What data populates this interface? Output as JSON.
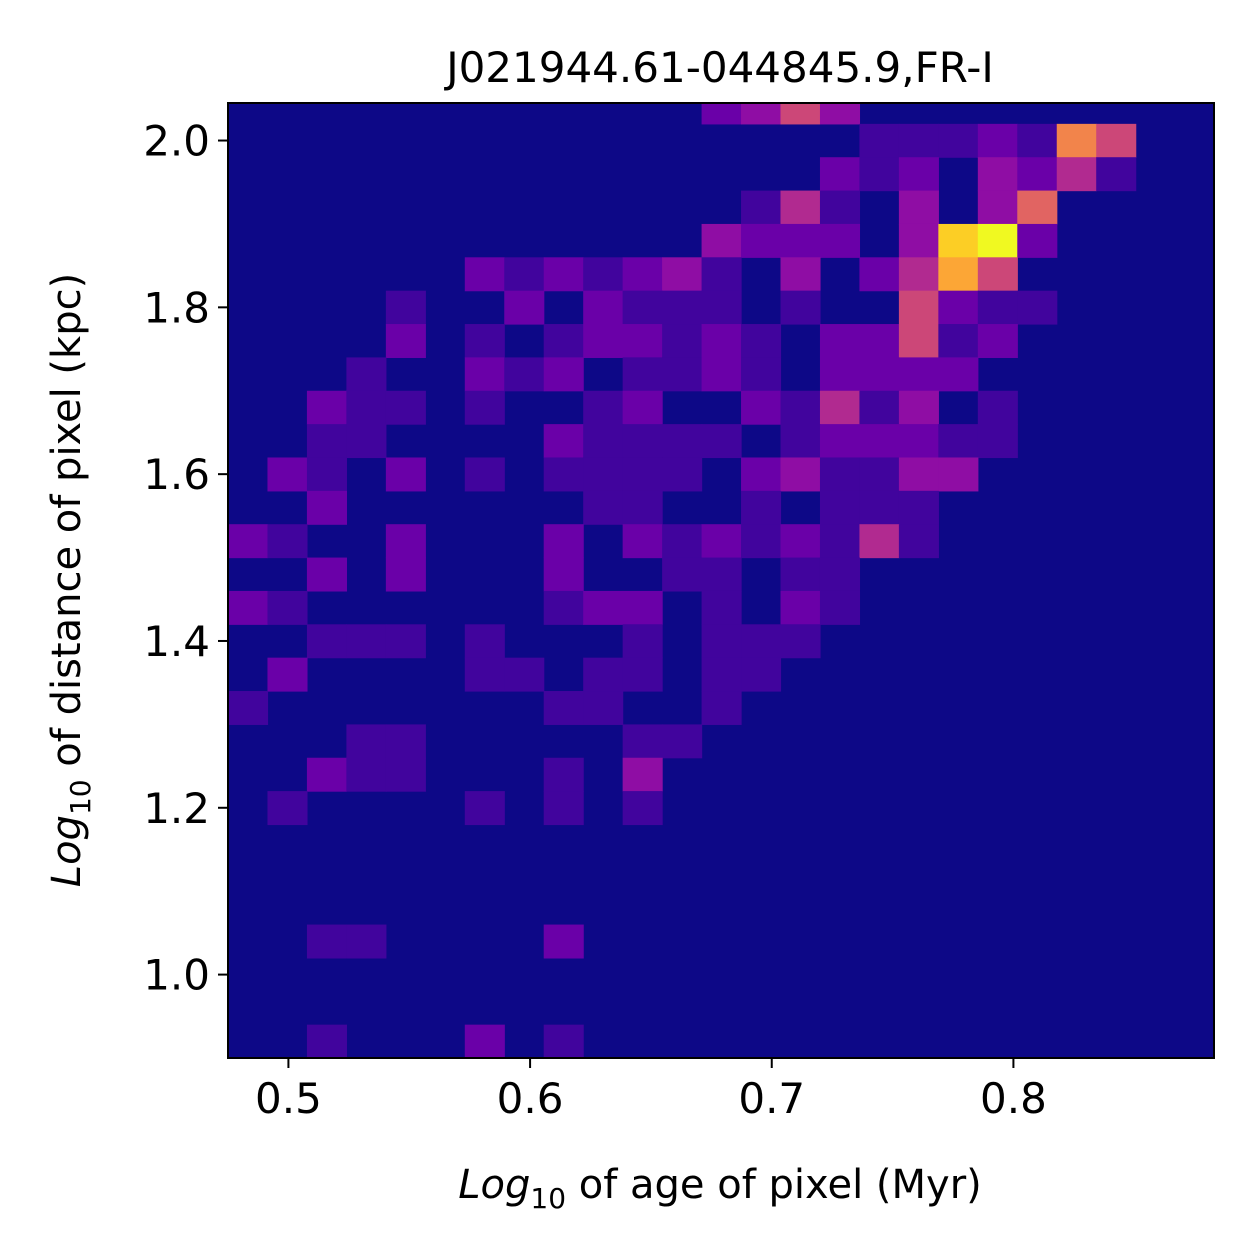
{
  "chart_data": {
    "type": "heatmap",
    "title": "J021944.61-044845.9,FR-I",
    "xlabel": {
      "italic": "Log",
      "sub": "10",
      "rest": " of age of pixel (Myr)"
    },
    "ylabel": {
      "italic": "Log",
      "sub": "10",
      "rest": " of distance of pixel (kpc)"
    },
    "xlim": [
      0.475,
      0.883
    ],
    "ylim": [
      0.9,
      2.045
    ],
    "xticks": [
      {
        "value": 0.5,
        "label": "0.5"
      },
      {
        "value": 0.6,
        "label": "0.6"
      },
      {
        "value": 0.7,
        "label": "0.7"
      },
      {
        "value": 0.8,
        "label": "0.8"
      }
    ],
    "yticks": [
      {
        "value": 1.0,
        "label": "1.0"
      },
      {
        "value": 1.2,
        "label": "1.2"
      },
      {
        "value": 1.4,
        "label": "1.4"
      },
      {
        "value": 1.6,
        "label": "1.6"
      },
      {
        "value": 1.8,
        "label": "1.8"
      },
      {
        "value": 2.0,
        "label": "2.0"
      }
    ],
    "colormap": "plasma",
    "background_color": "#0d0887",
    "vmax": 10,
    "bins": {
      "x_start": 0.475,
      "x_width": 0.01633,
      "y_start": 0.9,
      "y_width": 0.04,
      "nx": 25,
      "ny": 29
    },
    "cells": [
      [
        12,
        28,
        2
      ],
      [
        13,
        28,
        3
      ],
      [
        14,
        28,
        5
      ],
      [
        15,
        28,
        3
      ],
      [
        16,
        27,
        1
      ],
      [
        17,
        27,
        1
      ],
      [
        18,
        27,
        1
      ],
      [
        19,
        27,
        2
      ],
      [
        20,
        27,
        1
      ],
      [
        21,
        27,
        7
      ],
      [
        22,
        27,
        5
      ],
      [
        15,
        26,
        2
      ],
      [
        16,
        26,
        1
      ],
      [
        17,
        26,
        2
      ],
      [
        19,
        26,
        3
      ],
      [
        20,
        26,
        2
      ],
      [
        21,
        26,
        4
      ],
      [
        22,
        26,
        1
      ],
      [
        13,
        25,
        1
      ],
      [
        14,
        25,
        4
      ],
      [
        15,
        25,
        1
      ],
      [
        17,
        25,
        3
      ],
      [
        19,
        25,
        3
      ],
      [
        20,
        25,
        6
      ],
      [
        12,
        24,
        3
      ],
      [
        13,
        24,
        2
      ],
      [
        14,
        24,
        2
      ],
      [
        15,
        24,
        2
      ],
      [
        17,
        24,
        3
      ],
      [
        18,
        24,
        9
      ],
      [
        19,
        24,
        10
      ],
      [
        20,
        24,
        2
      ],
      [
        6,
        23,
        2
      ],
      [
        7,
        23,
        1
      ],
      [
        8,
        23,
        2
      ],
      [
        9,
        23,
        1
      ],
      [
        10,
        23,
        2
      ],
      [
        11,
        23,
        3
      ],
      [
        12,
        23,
        1
      ],
      [
        14,
        23,
        3
      ],
      [
        16,
        23,
        2
      ],
      [
        17,
        23,
        4
      ],
      [
        18,
        23,
        8
      ],
      [
        19,
        23,
        5
      ],
      [
        4,
        22,
        1
      ],
      [
        7,
        22,
        2
      ],
      [
        9,
        22,
        2
      ],
      [
        10,
        22,
        1
      ],
      [
        11,
        22,
        1
      ],
      [
        12,
        22,
        1
      ],
      [
        14,
        22,
        1
      ],
      [
        17,
        22,
        5
      ],
      [
        18,
        22,
        2
      ],
      [
        19,
        22,
        1
      ],
      [
        20,
        22,
        1
      ],
      [
        4,
        21,
        2
      ],
      [
        6,
        21,
        1
      ],
      [
        8,
        21,
        1
      ],
      [
        9,
        21,
        2
      ],
      [
        10,
        21,
        2
      ],
      [
        11,
        21,
        1
      ],
      [
        12,
        21,
        2
      ],
      [
        13,
        21,
        1
      ],
      [
        15,
        21,
        2
      ],
      [
        16,
        21,
        2
      ],
      [
        17,
        21,
        5
      ],
      [
        18,
        21,
        1
      ],
      [
        19,
        21,
        2
      ],
      [
        3,
        20,
        1
      ],
      [
        6,
        20,
        2
      ],
      [
        7,
        20,
        1
      ],
      [
        8,
        20,
        2
      ],
      [
        10,
        20,
        1
      ],
      [
        11,
        20,
        1
      ],
      [
        12,
        20,
        2
      ],
      [
        13,
        20,
        1
      ],
      [
        15,
        20,
        2
      ],
      [
        16,
        20,
        2
      ],
      [
        17,
        20,
        2
      ],
      [
        18,
        20,
        2
      ],
      [
        2,
        19,
        2
      ],
      [
        3,
        19,
        1
      ],
      [
        4,
        19,
        1
      ],
      [
        6,
        19,
        1
      ],
      [
        9,
        19,
        1
      ],
      [
        10,
        19,
        2
      ],
      [
        13,
        19,
        2
      ],
      [
        14,
        19,
        1
      ],
      [
        15,
        19,
        4
      ],
      [
        16,
        19,
        1
      ],
      [
        17,
        19,
        3
      ],
      [
        19,
        19,
        1
      ],
      [
        2,
        18,
        1
      ],
      [
        3,
        18,
        1
      ],
      [
        8,
        18,
        2
      ],
      [
        9,
        18,
        1
      ],
      [
        10,
        18,
        1
      ],
      [
        11,
        18,
        1
      ],
      [
        12,
        18,
        1
      ],
      [
        14,
        18,
        1
      ],
      [
        15,
        18,
        2
      ],
      [
        16,
        18,
        2
      ],
      [
        17,
        18,
        2
      ],
      [
        18,
        18,
        1
      ],
      [
        19,
        18,
        1
      ],
      [
        1,
        17,
        2
      ],
      [
        2,
        17,
        1
      ],
      [
        4,
        17,
        2
      ],
      [
        6,
        17,
        1
      ],
      [
        8,
        17,
        1
      ],
      [
        9,
        17,
        1
      ],
      [
        10,
        17,
        1
      ],
      [
        11,
        17,
        1
      ],
      [
        13,
        17,
        2
      ],
      [
        14,
        17,
        3
      ],
      [
        15,
        17,
        1
      ],
      [
        16,
        17,
        1
      ],
      [
        17,
        17,
        3
      ],
      [
        18,
        17,
        3
      ],
      [
        2,
        16,
        2
      ],
      [
        9,
        16,
        1
      ],
      [
        10,
        16,
        1
      ],
      [
        13,
        16,
        1
      ],
      [
        15,
        16,
        1
      ],
      [
        16,
        16,
        1
      ],
      [
        17,
        16,
        1
      ],
      [
        0,
        15,
        2
      ],
      [
        1,
        15,
        1
      ],
      [
        4,
        15,
        2
      ],
      [
        8,
        15,
        2
      ],
      [
        10,
        15,
        2
      ],
      [
        11,
        15,
        1
      ],
      [
        12,
        15,
        2
      ],
      [
        13,
        15,
        1
      ],
      [
        14,
        15,
        2
      ],
      [
        15,
        15,
        1
      ],
      [
        16,
        15,
        4
      ],
      [
        17,
        15,
        1
      ],
      [
        2,
        14,
        2
      ],
      [
        4,
        14,
        2
      ],
      [
        8,
        14,
        2
      ],
      [
        11,
        14,
        1
      ],
      [
        12,
        14,
        1
      ],
      [
        14,
        14,
        1
      ],
      [
        15,
        14,
        1
      ],
      [
        0,
        13,
        2
      ],
      [
        1,
        13,
        1
      ],
      [
        8,
        13,
        1
      ],
      [
        9,
        13,
        2
      ],
      [
        10,
        13,
        2
      ],
      [
        12,
        13,
        1
      ],
      [
        14,
        13,
        2
      ],
      [
        15,
        13,
        1
      ],
      [
        2,
        12,
        1
      ],
      [
        3,
        12,
        1
      ],
      [
        4,
        12,
        1
      ],
      [
        6,
        12,
        1
      ],
      [
        10,
        12,
        1
      ],
      [
        12,
        12,
        1
      ],
      [
        13,
        12,
        1
      ],
      [
        14,
        12,
        1
      ],
      [
        1,
        11,
        2
      ],
      [
        6,
        11,
        1
      ],
      [
        7,
        11,
        1
      ],
      [
        9,
        11,
        1
      ],
      [
        10,
        11,
        1
      ],
      [
        12,
        11,
        1
      ],
      [
        13,
        11,
        1
      ],
      [
        0,
        10,
        1
      ],
      [
        8,
        10,
        1
      ],
      [
        9,
        10,
        1
      ],
      [
        12,
        10,
        1
      ],
      [
        3,
        9,
        1
      ],
      [
        4,
        9,
        1
      ],
      [
        10,
        9,
        1
      ],
      [
        11,
        9,
        1
      ],
      [
        2,
        8,
        2
      ],
      [
        3,
        8,
        1
      ],
      [
        4,
        8,
        1
      ],
      [
        8,
        8,
        1
      ],
      [
        10,
        8,
        3
      ],
      [
        1,
        7,
        1
      ],
      [
        6,
        7,
        1
      ],
      [
        8,
        7,
        1
      ],
      [
        10,
        7,
        1
      ],
      [
        2,
        3,
        1
      ],
      [
        3,
        3,
        1
      ],
      [
        8,
        3,
        2
      ],
      [
        2,
        0,
        1
      ],
      [
        6,
        0,
        2
      ],
      [
        8,
        0,
        1
      ]
    ]
  }
}
